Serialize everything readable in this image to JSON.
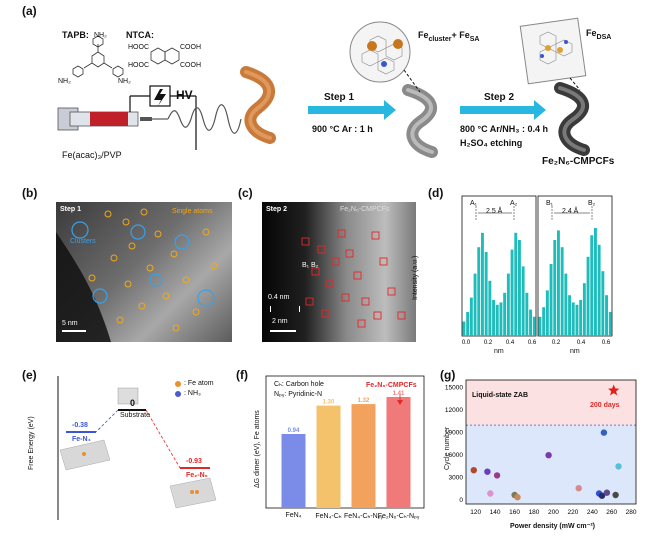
{
  "panel_a": {
    "label": "(a)",
    "tapb_label": "TAPB:",
    "ntca_label": "NTCA:",
    "hv_label": "HV",
    "precursor_label": "Fe(acac)₃/PVP",
    "step1_title": "Step 1",
    "step1_cond": "900 °C Ar : 1 h",
    "step2_title": "Step 2",
    "step2_cond1": "800 °C Ar/NH₃ : 0.4 h",
    "step2_cond2": "H₂SO₄ etching",
    "fe_cluster_label": "Fe",
    "fe_cluster_sub": "cluster",
    "fe_sa_label": "+ Fe",
    "fe_sa_sub": "SA",
    "fe_dsa_label": "Fe",
    "fe_dsa_sub": "DSA",
    "product_label": "Fe₂N₆-CMPCFs",
    "nh2": "NH₂",
    "cooh": "COOH",
    "hooc": "HOOC"
  },
  "panel_b": {
    "label": "(b)",
    "step_label": "Step 1",
    "single_atoms_label": "Single atoms",
    "clusters_label": "Clusters",
    "scale_label": "5 nm"
  },
  "panel_c": {
    "label": "(c)",
    "step_label": "Step 2",
    "title_label": "Fe₂N₆-CMPCFs",
    "b_label": "B₁ B₂",
    "dist_label": "0.4 nm",
    "scale_label": "2 nm"
  },
  "panel_d": {
    "label": "(d)",
    "ylabel": "Intensity (a.u.)",
    "xlabel": "nm",
    "left_annot": "2.5 Å",
    "right_annot": "2.4 Å",
    "a1": "A₁",
    "a2": "A₂",
    "b1": "B₁",
    "b2": "B₂"
  },
  "panel_e": {
    "label": "(e)",
    "ylabel": "Free Energy (eV)",
    "legend_fe": ": Fe atom",
    "legend_nh3": ": NH₃",
    "zero_label": "0",
    "substrate_label": "Substrate",
    "left_value": "-0.38",
    "left_label": "Fe-N₄",
    "right_value": "-0.93",
    "right_label": "Fe₂-N₆"
  },
  "panel_f": {
    "label": "(f)",
    "ylabel": "ΔG dimer (eV), Fe atoms",
    "note1": "Cₕ: Carbon hole",
    "note2": "Nₚᵧ: Pyridinic-N",
    "highlight": "Fe₂N₆-CMPCFs"
  },
  "panel_g": {
    "label": "(g)",
    "ylabel": "Cycle number",
    "xlabel": "Power density (mW cm⁻²)",
    "region_label": "Liquid-state ZAB",
    "star_label": "200 days"
  },
  "chart_data": [
    {
      "type": "line",
      "title": "",
      "xlabel": "nm",
      "ylabel": "Intensity (a.u.)",
      "xlim": [
        0,
        0.6
      ],
      "x_ticks": [
        "0.0",
        "0.2",
        "0.4",
        "0.6"
      ],
      "values": [
        0.12,
        0.2,
        0.32,
        0.52,
        0.74,
        0.86,
        0.7,
        0.46,
        0.3,
        0.26,
        0.28,
        0.36,
        0.52,
        0.72,
        0.86,
        0.8,
        0.58,
        0.36,
        0.22,
        0.16
      ]
    },
    {
      "type": "line",
      "title": "",
      "xlabel": "nm",
      "ylabel": "",
      "xlim": [
        0,
        0.6
      ],
      "x_ticks": [
        "0.2",
        "0.4",
        "0.6"
      ],
      "values": [
        0.16,
        0.24,
        0.38,
        0.6,
        0.8,
        0.88,
        0.74,
        0.52,
        0.34,
        0.28,
        0.26,
        0.3,
        0.44,
        0.66,
        0.84,
        0.9,
        0.76,
        0.54,
        0.34,
        0.2
      ]
    },
    {
      "type": "bar",
      "title": "",
      "xlabel": "",
      "ylabel": "ΔG dimer (eV), Fe atoms",
      "categories": [
        "FeN₄",
        "FeN₄-Cₕ",
        "FeN₄-Cₕ-Nₚᵧ",
        "Fe₂N₆-Cₕ-Nₚᵧ"
      ],
      "values": [
        0.94,
        1.3,
        1.32,
        1.41
      ],
      "value_labels": [
        "0.94",
        "1.30",
        "1.32",
        "1.41"
      ],
      "colors": [
        "#7b8ce8",
        "#f4c26b",
        "#f2a25c",
        "#f07a7a"
      ],
      "ylim": [
        0,
        1.6
      ]
    },
    {
      "type": "scatter",
      "title": "",
      "xlabel": "Power density (mW cm⁻²)",
      "ylabel": "Cycle number",
      "xlim": [
        110,
        285
      ],
      "ylim": [
        -500,
        16000
      ],
      "x_ticks": [
        120,
        140,
        160,
        180,
        200,
        220,
        240,
        260,
        280
      ],
      "y_ticks": [
        0,
        3000,
        6000,
        9000,
        12000,
        15000
      ],
      "threshold": 10000,
      "points": [
        {
          "x": 118,
          "y": 4000,
          "color": "#b04a2a"
        },
        {
          "x": 132,
          "y": 3800,
          "color": "#6a3fb5"
        },
        {
          "x": 135,
          "y": 900,
          "color": "#e08fd0"
        },
        {
          "x": 142,
          "y": 3300,
          "color": "#9a3a8a"
        },
        {
          "x": 160,
          "y": 700,
          "color": "#7a7a55"
        },
        {
          "x": 163,
          "y": 400,
          "color": "#c98a5a"
        },
        {
          "x": 195,
          "y": 6000,
          "color": "#7a3ab0"
        },
        {
          "x": 226,
          "y": 1600,
          "color": "#d68a8a"
        },
        {
          "x": 247,
          "y": 900,
          "color": "#3050d0"
        },
        {
          "x": 250,
          "y": 600,
          "color": "#2a2a6a"
        },
        {
          "x": 252,
          "y": 9000,
          "color": "#3060c0"
        },
        {
          "x": 255,
          "y": 1000,
          "color": "#5a4a8a"
        },
        {
          "x": 264,
          "y": 700,
          "color": "#4a4a4a"
        },
        {
          "x": 267,
          "y": 4500,
          "color": "#5ac0d0"
        }
      ],
      "star": {
        "x": 262,
        "y": 14600,
        "color": "#e02020"
      }
    }
  ]
}
